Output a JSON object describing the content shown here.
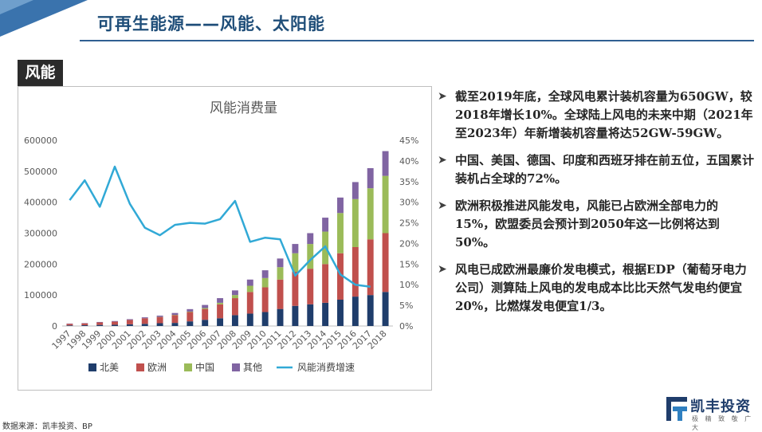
{
  "header": {
    "title": "可再生能源——风能、太阳能"
  },
  "section": {
    "tag": "风能"
  },
  "chart_data": {
    "type": "bar",
    "stacked": true,
    "title": "风能消费量",
    "categories": [
      "1997",
      "1998",
      "1999",
      "2000",
      "2001",
      "2002",
      "2003",
      "2004",
      "2005",
      "2006",
      "2007",
      "2008",
      "2009",
      "2010",
      "2011",
      "2012",
      "2013",
      "2014",
      "2015",
      "2016",
      "2017",
      "2018"
    ],
    "series": [
      {
        "name": "北美",
        "color": "#1f3d6b",
        "values": [
          2000,
          2500,
          3500,
          4000,
          5500,
          7000,
          9000,
          10000,
          15000,
          20000,
          25000,
          35000,
          40000,
          45000,
          55000,
          65000,
          70000,
          75000,
          85000,
          95000,
          100000,
          110000
        ]
      },
      {
        "name": "欧洲",
        "color": "#c0504d",
        "values": [
          5000,
          6000,
          8000,
          10000,
          14000,
          18000,
          20000,
          25000,
          30000,
          35000,
          45000,
          55000,
          70000,
          80000,
          95000,
          110000,
          115000,
          125000,
          150000,
          160000,
          180000,
          190000
        ]
      },
      {
        "name": "中国",
        "color": "#9bbb59",
        "values": [
          0,
          0,
          0,
          0,
          0,
          0,
          500,
          1000,
          1500,
          3000,
          5000,
          10000,
          20000,
          30000,
          40000,
          60000,
          80000,
          105000,
          130000,
          155000,
          165000,
          185000
        ]
      },
      {
        "name": "其他",
        "color": "#8064a2",
        "values": [
          1000,
          1000,
          1500,
          2000,
          2500,
          3000,
          4000,
          6000,
          8000,
          10000,
          15000,
          15000,
          20000,
          25000,
          28000,
          30000,
          35000,
          45000,
          50000,
          55000,
          65000,
          80000
        ]
      }
    ],
    "line_series": {
      "name": "风能消费增速",
      "color": "#31a9d6",
      "axis": "right",
      "values": [
        30.5,
        35.3,
        28.9,
        38.6,
        29.6,
        23.8,
        22.0,
        24.5,
        25.0,
        24.8,
        25.9,
        30.3,
        20.4,
        21.4,
        21.0,
        12.2,
        16.0,
        19.3,
        12.5,
        10.0,
        9.5,
        null
      ]
    },
    "ylim": [
      0,
      600000
    ],
    "yticks": [
      "0",
      "100000",
      "200000",
      "300000",
      "400000",
      "500000",
      "600000"
    ],
    "y2lim": [
      0,
      45
    ],
    "y2ticks": [
      "0%",
      "5%",
      "10%",
      "15%",
      "20%",
      "25%",
      "30%",
      "35%",
      "40%",
      "45%"
    ],
    "legend_position": "bottom"
  },
  "bullets": [
    "截至2019年底，全球风电累计装机容量为650GW，较2018年增长10%。全球陆上风电的未来中期（2021年至2023年）年新增装机容量将达52GW-59GW。",
    "中国、美国、德国、印度和西班牙排在前五位，五国累计装机占全球的72%。",
    "欧洲积极推进风能发电，风能已占欧洲全部电力的15%，欧盟委员会预计到2050年这一比例将达到50%。",
    "风电已成欧洲最廉价发电模式，根据EDP（葡萄牙电力公司）测算陆上风电的发电成本比比天然气发电约便宜20%，比燃煤发电便宜1/3。"
  ],
  "footer": {
    "source": "数据来源：凯丰投资、BP"
  },
  "logo": {
    "name": "凯丰投资",
    "slogan": "极 精 致 敬 广 大"
  }
}
